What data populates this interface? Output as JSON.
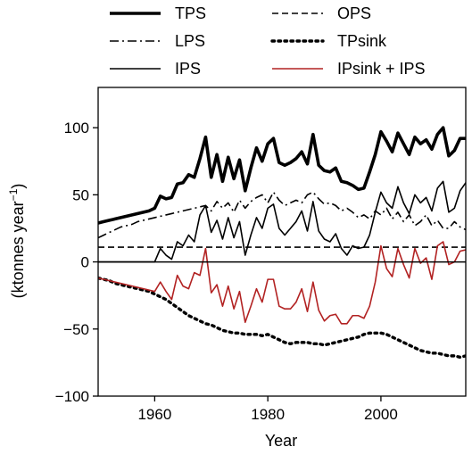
{
  "chart_data": {
    "type": "line",
    "title": "",
    "xlabel": "Year",
    "ylabel": "(ktonnes year",
    "ylabel_superscript": "−1",
    "ylabel_close": ")",
    "xlim": [
      1950,
      2015
    ],
    "ylim": [
      -100,
      130
    ],
    "xticks": [
      1960,
      1980,
      2000
    ],
    "xtick_labels": [
      "1960",
      "1980",
      "2000"
    ],
    "yticks": [
      -100,
      -50,
      0,
      50,
      100
    ],
    "ytick_labels": [
      "−100",
      "−50",
      "0",
      "50",
      "100"
    ],
    "grid": false,
    "legend_position": "top",
    "zero_line": true,
    "x": [
      1950,
      1951,
      1952,
      1953,
      1954,
      1955,
      1956,
      1957,
      1958,
      1959,
      1960,
      1961,
      1962,
      1963,
      1964,
      1965,
      1966,
      1967,
      1968,
      1969,
      1970,
      1971,
      1972,
      1973,
      1974,
      1975,
      1976,
      1977,
      1978,
      1979,
      1980,
      1981,
      1982,
      1983,
      1984,
      1985,
      1986,
      1987,
      1988,
      1989,
      1990,
      1991,
      1992,
      1993,
      1994,
      1995,
      1996,
      1997,
      1998,
      1999,
      2000,
      2001,
      2002,
      2003,
      2004,
      2005,
      2006,
      2007,
      2008,
      2009,
      2010,
      2011,
      2012,
      2013,
      2014,
      2015
    ],
    "series": [
      {
        "name": "TPS",
        "color": "#000000",
        "style": "solid-thick",
        "values": [
          29,
          30,
          31,
          32,
          33,
          34,
          35,
          36,
          37,
          38,
          40,
          49,
          47,
          48,
          58,
          59,
          65,
          63,
          77,
          93,
          63,
          80,
          60,
          78,
          62,
          76,
          53,
          70,
          85,
          75,
          88,
          92,
          74,
          72,
          74,
          77,
          82,
          73,
          95,
          72,
          68,
          67,
          70,
          60,
          59,
          57,
          54,
          55,
          67,
          80,
          97,
          90,
          82,
          96,
          88,
          80,
          93,
          88,
          91,
          84,
          95,
          100,
          79,
          83,
          92,
          92
        ]
      },
      {
        "name": "OPS",
        "color": "#000000",
        "style": "dashed",
        "values": [
          11,
          11,
          11,
          11,
          11,
          11,
          11,
          11,
          11,
          11,
          11,
          11,
          11,
          11,
          11,
          11,
          11,
          11,
          11,
          11,
          11,
          11,
          11,
          11,
          11,
          11,
          11,
          11,
          11,
          11,
          11,
          11,
          11,
          11,
          11,
          11,
          11,
          11,
          11,
          11,
          11,
          11,
          11,
          11,
          11,
          11,
          11,
          11,
          11,
          11,
          11,
          11,
          11,
          11,
          11,
          11,
          11,
          11,
          11,
          11,
          11,
          11,
          11,
          11,
          11,
          11
        ]
      },
      {
        "name": "LPS",
        "color": "#000000",
        "style": "dashdot",
        "values": [
          18,
          20,
          22,
          24,
          26,
          27,
          28,
          30,
          31,
          32,
          33,
          34,
          35,
          36,
          37,
          38,
          39,
          40,
          41,
          42,
          38,
          45,
          40,
          44,
          37,
          46,
          40,
          45,
          48,
          50,
          44,
          52,
          46,
          42,
          44,
          46,
          44,
          50,
          52,
          47,
          43,
          44,
          42,
          38,
          40,
          37,
          33,
          35,
          32,
          38,
          35,
          40,
          32,
          37,
          30,
          35,
          27,
          30,
          35,
          27,
          31,
          25,
          25,
          30,
          26,
          24
        ]
      },
      {
        "name": "TPsink",
        "color": "#000000",
        "style": "dotted",
        "values": [
          -12,
          -13,
          -14,
          -16,
          -17,
          -18,
          -19,
          -20,
          -21,
          -22,
          -24,
          -26,
          -28,
          -31,
          -34,
          -37,
          -40,
          -42,
          -44,
          -46,
          -47,
          -49,
          -51,
          -52,
          -53,
          -53,
          -54,
          -54,
          -54,
          -55,
          -54,
          -56,
          -58,
          -60,
          -61,
          -60,
          -60,
          -60,
          -61,
          -61,
          -62,
          -61,
          -60,
          -59,
          -58,
          -57,
          -56,
          -54,
          -53,
          -53,
          -53,
          -54,
          -56,
          -58,
          -60,
          -62,
          -64,
          -66,
          -67,
          -68,
          -68,
          -69,
          -70,
          -70,
          -71,
          -70
        ]
      },
      {
        "name": "IPS",
        "color": "#000000",
        "style": "solid-thin",
        "values": [
          0,
          0,
          0,
          0,
          0,
          0,
          0,
          0,
          0,
          0,
          0,
          10,
          5,
          2,
          15,
          12,
          20,
          15,
          35,
          42,
          22,
          31,
          17,
          33,
          18,
          30,
          5,
          20,
          33,
          25,
          40,
          43,
          25,
          20,
          25,
          30,
          38,
          23,
          45,
          23,
          17,
          15,
          21,
          10,
          5,
          12,
          10,
          11,
          20,
          37,
          52,
          44,
          40,
          56,
          44,
          36,
          50,
          44,
          48,
          38,
          55,
          60,
          37,
          40,
          53,
          59
        ]
      },
      {
        "name": "IPsink + IPS",
        "color": "#b22222",
        "style": "solid-thin",
        "values": [
          -12,
          -13,
          -14,
          -15,
          -16,
          -17,
          -18,
          -19,
          -20,
          -21,
          -22,
          -15,
          -22,
          -28,
          -10,
          -18,
          -20,
          -8,
          -10,
          10,
          -23,
          -17,
          -33,
          -18,
          -35,
          -22,
          -45,
          -33,
          -20,
          -30,
          -13,
          -13,
          -33,
          -35,
          -35,
          -30,
          -20,
          -37,
          -15,
          -36,
          -44,
          -40,
          -39,
          -46,
          -46,
          -40,
          -40,
          -42,
          -33,
          -15,
          12,
          -5,
          -11,
          10,
          -2,
          -12,
          10,
          -1,
          3,
          -13,
          12,
          15,
          -2,
          0,
          8,
          9
        ]
      }
    ]
  }
}
